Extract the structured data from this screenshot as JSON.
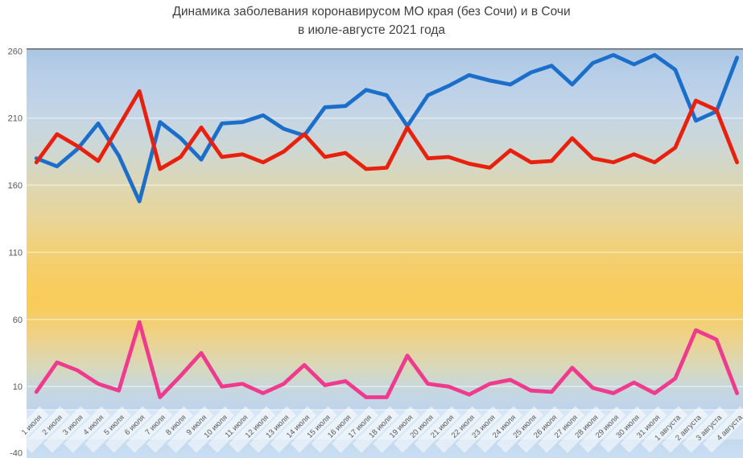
{
  "title": {
    "line1": "Динамика заболевания коронавирусом МО края (без Сочи) и в Сочи",
    "line2": "в июле-августе 2021 года"
  },
  "colors": {
    "blue_line": "#1b6fcb",
    "red_line": "#e8200e",
    "pink_line": "#ee3b8e",
    "axis_text": "#595959",
    "title_text": "#3f3f3f",
    "plot_border_top": "#6f6f6f",
    "gridline": "rgba(255,255,255,0.55)",
    "x_band": "rgba(222,235,247,0.75)",
    "x_band_cell": "rgba(255,255,255,0.5)"
  },
  "chart_data": {
    "type": "line",
    "title": "Динамика заболевания коронавирусом МО края (без Сочи) и в Сочи в июле-августе 2021 года",
    "xlabel": "",
    "ylabel": "",
    "legend": "none",
    "grid": "faint horizontal white lines",
    "y_axis": {
      "min": -40,
      "max": 260,
      "step": 50,
      "ticks": [
        260,
        210,
        160,
        110,
        60,
        10,
        -40
      ],
      "gridline_values": [
        210,
        160,
        110,
        60,
        10
      ]
    },
    "categories": [
      "1 июля",
      "2 июля",
      "3 июля",
      "4 июля",
      "5 июля",
      "6 июля",
      "7 июля",
      "8 июля",
      "9 июля",
      "10 июля",
      "11 июля",
      "12 июля",
      "13 июля",
      "14 июля",
      "15 июля",
      "16 июля",
      "17 июля",
      "18 июля",
      "19 июля",
      "20 июля",
      "21 июля",
      "22 июля",
      "23 июля",
      "24 июля",
      "25 июля",
      "26 июля",
      "27 июля",
      "28 июля",
      "29 июля",
      "30 июля",
      "31 июля",
      "1 августа",
      "2 августа",
      "3 августа",
      "4 августа"
    ],
    "series": [
      {
        "name": "blue-line",
        "color": "#1b6fcb",
        "values": [
          180,
          174,
          187,
          206,
          182,
          148,
          207,
          195,
          179,
          206,
          207,
          212,
          202,
          197,
          218,
          219,
          231,
          227,
          204,
          227,
          234,
          242,
          238,
          235,
          244,
          249,
          235,
          251,
          257,
          250,
          257,
          246,
          208,
          215,
          255
        ]
      },
      {
        "name": "red-line",
        "color": "#e8200e",
        "values": [
          177,
          198,
          189,
          178,
          204,
          230,
          172,
          181,
          203,
          181,
          183,
          177,
          185,
          198,
          181,
          184,
          172,
          173,
          203,
          180,
          181,
          176,
          173,
          186,
          177,
          178,
          195,
          180,
          177,
          183,
          177,
          188,
          223,
          216,
          177
        ]
      },
      {
        "name": "pink-line",
        "color": "#ee3b8e",
        "values": [
          6,
          28,
          22,
          12,
          7,
          58,
          2,
          18,
          35,
          10,
          12,
          5,
          12,
          26,
          11,
          14,
          2,
          2,
          33,
          12,
          10,
          4,
          12,
          15,
          7,
          6,
          24,
          9,
          5,
          13,
          5,
          16,
          52,
          45,
          5
        ]
      }
    ],
    "background": {
      "type": "vertical-gradient",
      "stops": [
        {
          "offset": "0%",
          "color": "#a9c5e2"
        },
        {
          "offset": "7%",
          "color": "#b8cfe8"
        },
        {
          "offset": "16%",
          "color": "#c4d5e6"
        },
        {
          "offset": "24.5%",
          "color": "#cdd7d4"
        },
        {
          "offset": "33%",
          "color": "#dcd7b4"
        },
        {
          "offset": "42%",
          "color": "#e9d597"
        },
        {
          "offset": "50%",
          "color": "#f2d075"
        },
        {
          "offset": "58%",
          "color": "#f8cc5e"
        },
        {
          "offset": "63%",
          "color": "#f8cc5b"
        },
        {
          "offset": "71%",
          "color": "#edd28d"
        },
        {
          "offset": "77.6%",
          "color": "#d9d8b8"
        },
        {
          "offset": "83.5%",
          "color": "#c6d7e0"
        },
        {
          "offset": "88.4%",
          "color": "#bed4ec"
        },
        {
          "offset": "94.3%",
          "color": "#c3d8ee"
        },
        {
          "offset": "100%",
          "color": "#c9def1"
        }
      ]
    }
  }
}
